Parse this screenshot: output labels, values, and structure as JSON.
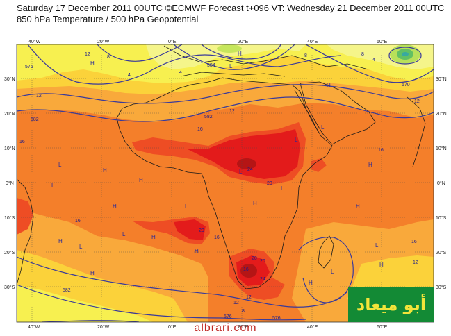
{
  "header": {
    "line1": "Saturday 17 December 2011 00UTC ©ECMWF Forecast t+096 VT: Wednesday 21 December 2011 00UTC",
    "line2": "850 hPa Temperature / 500 hPa Geopotential"
  },
  "axes": {
    "lon_labels_bottom": [
      "40°W",
      "20°W",
      "0°E",
      "20°E",
      "40°E",
      "60°E"
    ],
    "lon_labels_top": [
      "40°W",
      "20°W",
      "0°E",
      "20°E",
      "40°E",
      "60°E"
    ],
    "lat_labels_left": [
      "30°N",
      "20°N",
      "10°N",
      "0°N",
      "10°S",
      "20°S",
      "30°S"
    ],
    "lat_labels_right": [
      "30°N",
      "20°N",
      "10°N",
      "0°N",
      "10°S",
      "20°S",
      "30°S"
    ]
  },
  "contour_labels": [
    "12",
    "8",
    "4",
    "584",
    "576",
    "8",
    "4",
    "8",
    "570",
    "12",
    "12",
    "582",
    "12",
    "16",
    "582",
    "16",
    "16",
    "24",
    "20",
    "16",
    "16",
    "20",
    "16",
    "12",
    "24",
    "16",
    "20",
    "12",
    "8",
    "12",
    "576",
    "582",
    "4",
    "576",
    "20"
  ],
  "pressure_labels": [
    "H",
    "H",
    "L",
    "L",
    "H",
    "L",
    "H",
    "H",
    "L",
    "H",
    "L",
    "H",
    "L",
    "H",
    "H",
    "H",
    "L",
    "H",
    "L",
    "H",
    "L",
    "L",
    "H",
    "H",
    "L",
    "H",
    "L"
  ],
  "colors": {
    "t_lt4": "#f5f58a",
    "t_4_8": "#f7f050",
    "t_8_12": "#fbd23a",
    "t_12_16": "#f9a93b",
    "t_16_20": "#f47f2a",
    "t_20_24": "#ee4d24",
    "t_gt24": "#e31b1b",
    "t_hot": "#b51515",
    "coast": "#1a1a1a",
    "geopotential": "#3a3a9a"
  },
  "watermark": "albrari.com",
  "logo": "أبو ميعاد"
}
